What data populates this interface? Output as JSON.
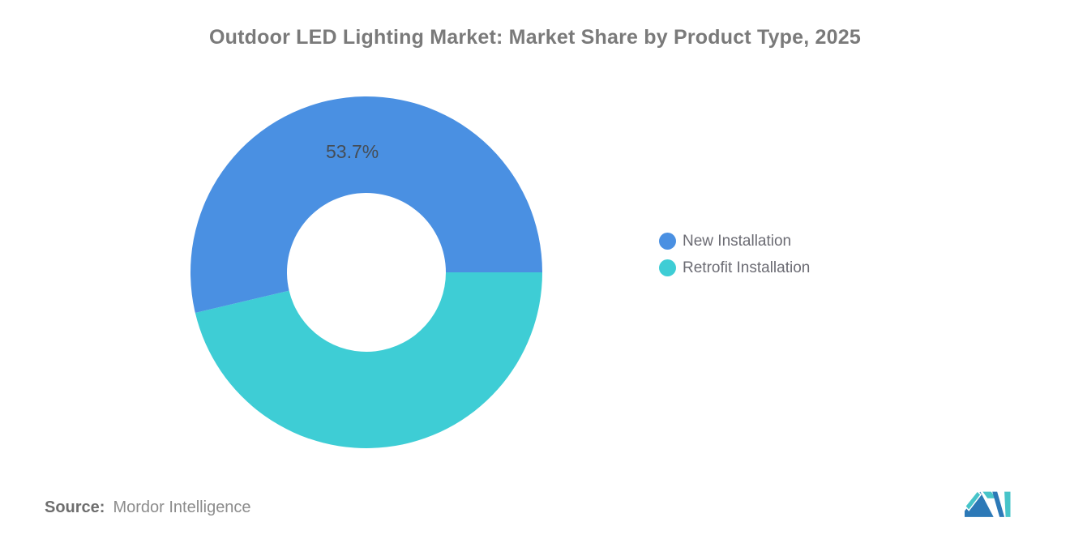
{
  "chart_data": {
    "type": "pie",
    "title": "Outdoor LED Lighting Market: Market Share by Product Type, 2025",
    "unit": "%",
    "donut": true,
    "start_angle_deg": 90,
    "slices": [
      {
        "name": "Retrofit Installation",
        "value": 46.3,
        "color": "#3ECDD5",
        "label": ""
      },
      {
        "name": "New Installation",
        "value": 53.7,
        "color": "#4A90E2",
        "label": "53.7%"
      }
    ],
    "label_color": "#454d56",
    "legend": {
      "position": "right",
      "entries": [
        {
          "label": "New Installation",
          "color": "#4A90E2"
        },
        {
          "label": "Retrofit Installation",
          "color": "#3ECDD5"
        }
      ]
    }
  },
  "source": {
    "label": "Source:",
    "text": "Mordor Intelligence"
  },
  "logo": {
    "name": "mordor-intelligence-logo",
    "teal": "#47C4C9",
    "blue": "#2C79B7"
  }
}
